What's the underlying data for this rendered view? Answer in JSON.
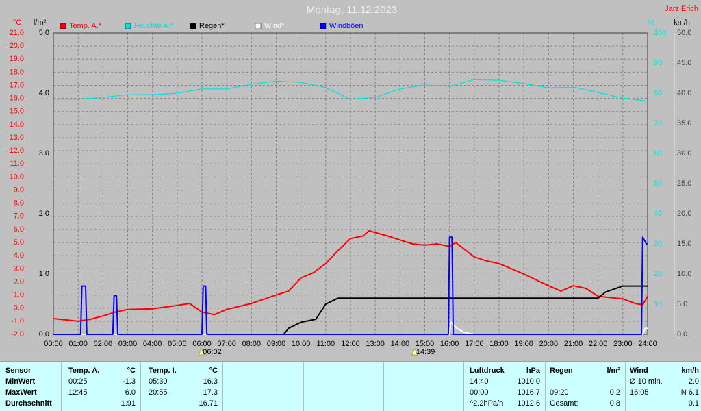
{
  "chart_data": {
    "type": "line",
    "title": "Montag, 11.12.2023",
    "author": "Jarz Erich",
    "ylabel": "°C",
    "y2label": "l/m²",
    "y3label": "%",
    "y4label": "km/h",
    "xlim": [
      0,
      24
    ],
    "xticks": [
      {
        "value": 0,
        "label": "00:00"
      },
      {
        "value": 1,
        "label": "01:00"
      },
      {
        "value": 2,
        "label": "02:00"
      },
      {
        "value": 3,
        "label": "03:00"
      },
      {
        "value": 4,
        "label": "04:00"
      },
      {
        "value": 5,
        "label": "05:00"
      },
      {
        "value": 6,
        "label": "06:00"
      },
      {
        "value": 7,
        "label": "07:00"
      },
      {
        "value": 8,
        "label": "08:00"
      },
      {
        "value": 9,
        "label": "09:00"
      },
      {
        "value": 10,
        "label": "10:00"
      },
      {
        "value": 11,
        "label": "11:00"
      },
      {
        "value": 12,
        "label": "12:00"
      },
      {
        "value": 13,
        "label": "13:00"
      },
      {
        "value": 14,
        "label": "14:00"
      },
      {
        "value": 15,
        "label": "15:00"
      },
      {
        "value": 16,
        "label": "16:00"
      },
      {
        "value": 17,
        "label": "17:00"
      },
      {
        "value": 18,
        "label": "18:00"
      },
      {
        "value": 19,
        "label": "19:00"
      },
      {
        "value": 20,
        "label": "20:00"
      },
      {
        "value": 21,
        "label": "21:00"
      },
      {
        "value": 22,
        "label": "22:00"
      },
      {
        "value": 23,
        "label": "23:00"
      },
      {
        "value": 24,
        "label": "24:00"
      }
    ],
    "ylim": [
      -2,
      21
    ],
    "yticks": [
      {
        "value": -2,
        "label": "-2.0"
      },
      {
        "value": -1,
        "label": "-1.0"
      },
      {
        "value": 0,
        "label": "0.0"
      },
      {
        "value": 1,
        "label": "1.0"
      },
      {
        "value": 2,
        "label": "2.0"
      },
      {
        "value": 3,
        "label": "3.0"
      },
      {
        "value": 4,
        "label": "4.0"
      },
      {
        "value": 5,
        "label": "5.0"
      },
      {
        "value": 6,
        "label": "6.0"
      },
      {
        "value": 7,
        "label": "7.0"
      },
      {
        "value": 8,
        "label": "8.0"
      },
      {
        "value": 9,
        "label": "9.0"
      },
      {
        "value": 10,
        "label": "10.0"
      },
      {
        "value": 11,
        "label": "11.0"
      },
      {
        "value": 12,
        "label": "12.0"
      },
      {
        "value": 13,
        "label": "13.0"
      },
      {
        "value": 14,
        "label": "14.0"
      },
      {
        "value": 15,
        "label": "15.0"
      },
      {
        "value": 16,
        "label": "16.0"
      },
      {
        "value": 17,
        "label": "17.0"
      },
      {
        "value": 18,
        "label": "18.0"
      },
      {
        "value": 19,
        "label": "19.0"
      },
      {
        "value": 20,
        "label": "20.0"
      },
      {
        "value": 21,
        "label": "21.0"
      }
    ],
    "y2lim": [
      0,
      5
    ],
    "y2ticks": [
      {
        "value": 0,
        "label": "0.0"
      },
      {
        "value": 1,
        "label": "1.0"
      },
      {
        "value": 2,
        "label": "2.0"
      },
      {
        "value": 3,
        "label": "3.0"
      },
      {
        "value": 4,
        "label": "4.0"
      },
      {
        "value": 5,
        "label": "5.0"
      }
    ],
    "y3lim": [
      0,
      100
    ],
    "y3ticks": [
      10,
      20,
      30,
      40,
      50,
      60,
      70,
      80,
      90,
      100
    ],
    "y4lim": [
      0,
      50
    ],
    "y4ticks": [
      {
        "value": 0,
        "label": "0.0"
      },
      {
        "value": 5,
        "label": "5.0"
      },
      {
        "value": 10,
        "label": "10.0"
      },
      {
        "value": 15,
        "label": "15.0"
      },
      {
        "value": 20,
        "label": "20.0"
      },
      {
        "value": 25,
        "label": "25.0"
      },
      {
        "value": 30,
        "label": "30.0"
      },
      {
        "value": 35,
        "label": "35.0"
      },
      {
        "value": 40,
        "label": "40.0"
      },
      {
        "value": 45,
        "label": "45.0"
      },
      {
        "value": 50,
        "label": "50.0"
      }
    ],
    "grid": true,
    "series": [
      {
        "name": "Temp. A.*",
        "color": "#ff0000",
        "axis": "y",
        "x": [
          0,
          1,
          1.5,
          2,
          2.5,
          3,
          4,
          5,
          5.5,
          6,
          6.5,
          7,
          8,
          9,
          9.5,
          10,
          10.5,
          11,
          11.5,
          12,
          12.5,
          12.75,
          13.5,
          14,
          14.5,
          15,
          15.5,
          16,
          16.25,
          17,
          17.5,
          18,
          19,
          20,
          20.5,
          21,
          21.5,
          22,
          23,
          23.5,
          23.8,
          24
        ],
        "values": [
          -0.8,
          -1.0,
          -0.85,
          -0.6,
          -0.3,
          -0.1,
          -0.05,
          0.2,
          0.35,
          -0.3,
          -0.5,
          -0.1,
          0.35,
          1.0,
          1.3,
          2.3,
          2.7,
          3.4,
          4.4,
          5.3,
          5.5,
          5.9,
          5.5,
          5.2,
          4.9,
          4.8,
          4.9,
          4.7,
          5.0,
          3.9,
          3.6,
          3.4,
          2.6,
          1.7,
          1.3,
          1.7,
          1.5,
          0.9,
          0.7,
          0.35,
          0.25,
          0.9
        ]
      },
      {
        "name": "Feuchte A.*",
        "color": "#00e0e0",
        "axis": "y3",
        "x": [
          0,
          1,
          2,
          3,
          4,
          5,
          6,
          7,
          8,
          9,
          10,
          11,
          12,
          13,
          14,
          15,
          16,
          17,
          18,
          19,
          20,
          21,
          22,
          23,
          24
        ],
        "values": [
          78,
          78,
          78.6,
          79.5,
          79.5,
          80,
          81.4,
          81.4,
          83,
          84,
          83.6,
          81.8,
          78,
          78.6,
          81.4,
          82.7,
          82.3,
          84.5,
          84.3,
          83.2,
          81.8,
          82,
          80.2,
          78.4,
          77.3
        ]
      },
      {
        "name": "Regen*",
        "color": "#000000",
        "axis": "y2",
        "x": [
          0,
          9.3,
          9.5,
          10,
          10.6,
          11,
          11.5,
          12,
          22,
          22.3,
          23,
          24
        ],
        "values": [
          0,
          0,
          0.1,
          0.2,
          0.25,
          0.5,
          0.6,
          0.6,
          0.6,
          0.7,
          0.8,
          0.8
        ]
      },
      {
        "name": "Wind*",
        "color": "#ffffff",
        "axis": "y4",
        "x": [
          0,
          16,
          16.05,
          16.3,
          16.6,
          17,
          23.8,
          23.9,
          24
        ],
        "values": [
          0,
          0,
          2,
          1,
          0.3,
          0,
          0,
          1,
          1
        ]
      },
      {
        "name": "Windböen",
        "color": "#0000ff",
        "axis": "y4",
        "x": [
          0,
          1.1,
          1.15,
          1.3,
          1.35,
          2.4,
          2.45,
          2.55,
          2.6,
          6,
          6.05,
          6.15,
          6.2,
          15.95,
          16,
          16.1,
          16.15,
          23.75,
          23.8,
          23.95,
          24
        ],
        "values": [
          0,
          0,
          8,
          8,
          0,
          0,
          6.4,
          6.4,
          0,
          0,
          8,
          8,
          0,
          0,
          16.1,
          16.1,
          0,
          0,
          16.1,
          15,
          15
        ]
      }
    ],
    "annotations": [
      {
        "text": "06:02"
      },
      {
        "text": "14:39"
      }
    ]
  },
  "table": {
    "rows": [
      {
        "sensor": "Sensor",
        "ta_t": "Temp. A.",
        "ta_v": "°C",
        "ti_t": "Temp. I.",
        "ti_v": "°C",
        "p_t": "Luftdruck",
        "p_v": "hPa",
        "r_t": "Regen",
        "r_v": "l/m²",
        "w_t": "Wind",
        "w_v": "km/h"
      },
      {
        "sensor": "MinWert",
        "ta_t": "00:25",
        "ta_v": "-1.3",
        "ti_t": "05:30",
        "ti_v": "16.3",
        "p_t": "14:40",
        "p_v": "1010.0",
        "w_t": "Ø 10 min.",
        "w_v": "2.0"
      },
      {
        "sensor": "MaxWert",
        "ta_t": "12:45",
        "ta_v": "6.0",
        "ti_t": "20:55",
        "ti_v": "17.3",
        "p_t": "00:00",
        "p_v": "1016.7",
        "r_t": "09:20",
        "r_v": "0.2",
        "w_t": "16:05",
        "w_v": "N 6.1"
      },
      {
        "sensor": "Durchschnitt",
        "ta_v": "1.91",
        "ti_v": "16.71",
        "p_t": "^2.2hPa/h",
        "p_v": "1012.6",
        "r_t": "Gesamt:",
        "r_v": "0.8",
        "w_v": "0.1"
      }
    ]
  }
}
